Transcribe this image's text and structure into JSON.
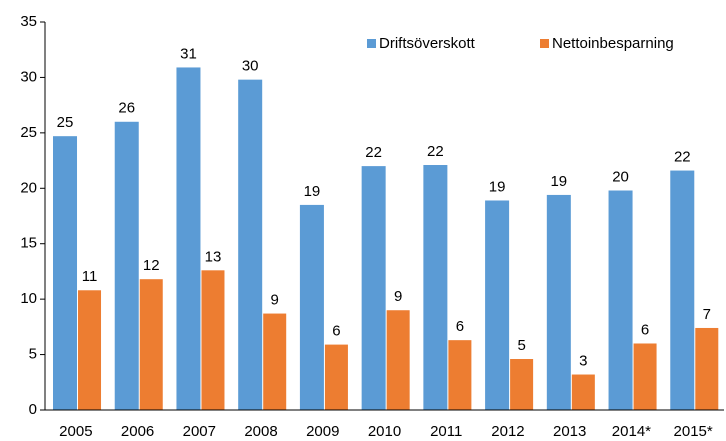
{
  "chart_data": {
    "type": "bar",
    "categories": [
      "2005",
      "2006",
      "2007",
      "2008",
      "2009",
      "2010",
      "2011",
      "2012",
      "2013",
      "2014*",
      "2015*"
    ],
    "series": [
      {
        "name": "Driftsöverskott",
        "color": "#5b9bd5",
        "values": [
          24.7,
          26.0,
          30.9,
          29.8,
          18.5,
          22.0,
          22.1,
          18.9,
          19.4,
          19.8,
          21.6
        ],
        "value_labels": [
          "25",
          "26",
          "31",
          "30",
          "19",
          "22",
          "22",
          "19",
          "19",
          "20",
          "22"
        ]
      },
      {
        "name": "Nettoinbesparning",
        "color": "#ed7d31",
        "values": [
          10.8,
          11.8,
          12.6,
          8.7,
          5.9,
          9.0,
          6.3,
          4.6,
          3.2,
          6.0,
          7.4
        ],
        "value_labels": [
          "11",
          "12",
          "13",
          "9",
          "6",
          "9",
          "6",
          "5",
          "3",
          "6",
          "7"
        ]
      }
    ],
    "ylim": [
      0,
      35
    ],
    "yticks": [
      0,
      5,
      10,
      15,
      20,
      25,
      30,
      35
    ],
    "grid": false,
    "legend": "upper right"
  }
}
